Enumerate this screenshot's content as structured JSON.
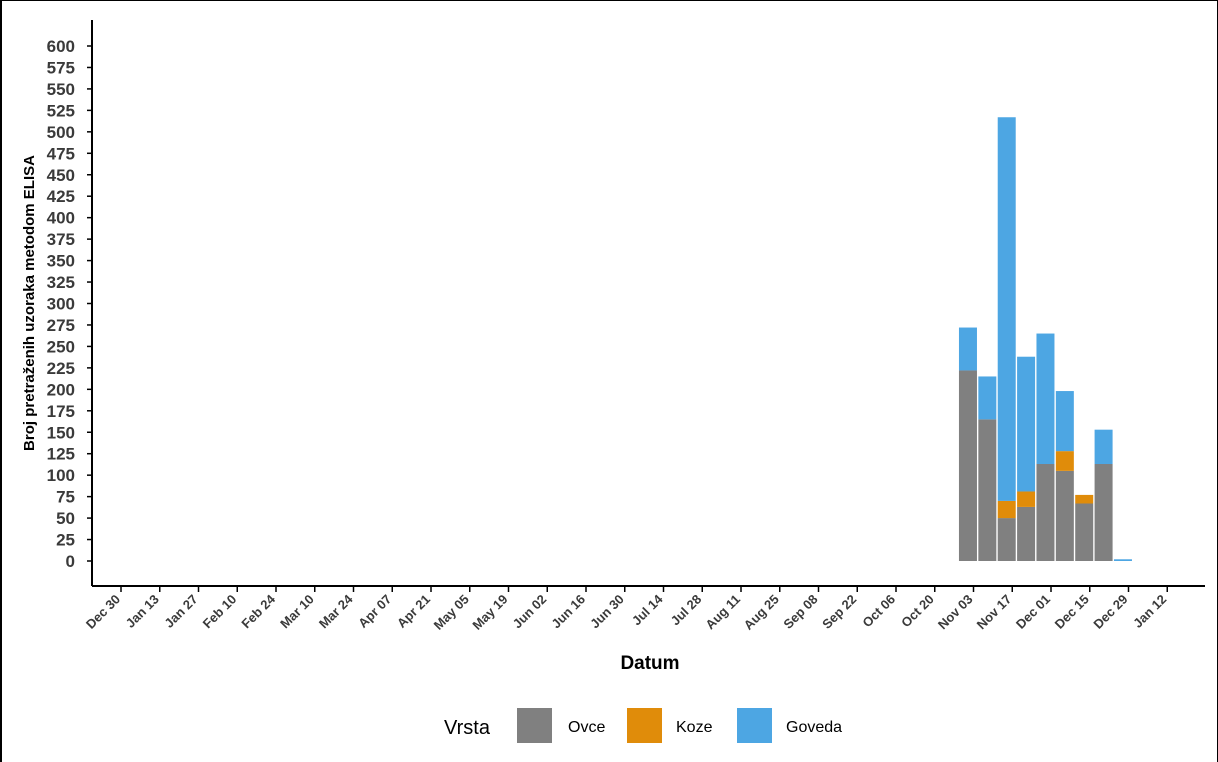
{
  "chart_data": {
    "type": "bar",
    "stacked": true,
    "xlabel": "Datum",
    "ylabel": "Broj pretraženih uzoraka metodom ELISA",
    "ylim": [
      0,
      600
    ],
    "y_ticks": [
      "0",
      "25",
      "50",
      "75",
      "100",
      "125",
      "150",
      "175",
      "200",
      "225",
      "250",
      "275",
      "300",
      "325",
      "350",
      "375",
      "400",
      "425",
      "450",
      "475",
      "500",
      "525",
      "550",
      "575",
      "600"
    ],
    "x_ticks": [
      "Dec 30",
      "Jan 13",
      "Jan 27",
      "Feb 10",
      "Feb 24",
      "Mar 10",
      "Mar 24",
      "Apr 07",
      "Apr 21",
      "May 05",
      "May 19",
      "Jun 02",
      "Jun 16",
      "Jun 30",
      "Jul 14",
      "Jul 28",
      "Aug 11",
      "Aug 25",
      "Sep 08",
      "Sep 22",
      "Oct 06",
      "Oct 20",
      "Nov 03",
      "Nov 17",
      "Dec 01",
      "Dec 15",
      "Dec 29",
      "Jan 12"
    ],
    "categories": [
      "Oct 31",
      "Nov 07",
      "Nov 14",
      "Nov 21",
      "Nov 28",
      "Dec 05",
      "Dec 12",
      "Dec 19",
      "Dec 26"
    ],
    "series": [
      {
        "name": "Ovce",
        "color": "#808080",
        "values": [
          222,
          165,
          50,
          63,
          113,
          105,
          67,
          113,
          0
        ]
      },
      {
        "name": "Koze",
        "color": "#E08C0A",
        "values": [
          0,
          0,
          20,
          18,
          0,
          23,
          10,
          0,
          0
        ]
      },
      {
        "name": "Goveda",
        "color": "#4DA6E3",
        "values": [
          50,
          50,
          447,
          157,
          152,
          70,
          0,
          40,
          2
        ]
      }
    ],
    "grid": false,
    "legend": {
      "title": "Vrsta",
      "position": "bottom"
    }
  }
}
